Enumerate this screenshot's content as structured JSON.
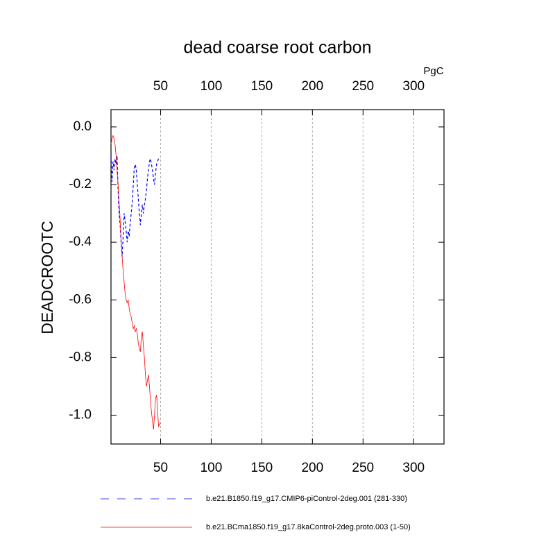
{
  "chart_data": {
    "type": "line",
    "title": "dead coarse root carbon",
    "ylabel": "DEADCROOTC",
    "top_axis_unit": "PgC",
    "top_axis_color": "#0000ff",
    "bottom_axis_color": "#ff0000",
    "xlim": [
      1,
      330
    ],
    "ylim": [
      -1.1,
      0.06
    ],
    "xticks": [
      50,
      100,
      150,
      200,
      250,
      300
    ],
    "yticks": [
      {
        "value": 0,
        "label": "0.0"
      },
      -0.2,
      -0.4,
      -0.6,
      -0.8,
      {
        "value": -1,
        "label": "-1.0"
      }
    ],
    "grid": "vertical-dotted",
    "x": [
      1,
      2,
      3,
      4,
      5,
      6,
      7,
      8,
      9,
      10,
      11,
      12,
      13,
      14,
      15,
      16,
      17,
      18,
      19,
      20,
      21,
      22,
      23,
      24,
      25,
      26,
      27,
      28,
      29,
      30,
      31,
      32,
      33,
      34,
      35,
      36,
      37,
      38,
      39,
      40,
      41,
      42,
      43,
      44,
      45,
      46,
      47,
      48,
      49,
      50
    ],
    "series": [
      {
        "name": "b.e21.B1850.f19_g17.CMIP6-piControl-2deg.001 (281-330)",
        "color": "#0000ff",
        "dash": "dashed",
        "values": [
          -0.1,
          -0.19,
          -0.12,
          -0.15,
          -0.11,
          -0.13,
          -0.1,
          -0.22,
          -0.3,
          -0.34,
          -0.4,
          -0.45,
          -0.38,
          -0.3,
          -0.33,
          -0.36,
          -0.4,
          -0.36,
          -0.38,
          -0.33,
          -0.3,
          -0.26,
          -0.2,
          -0.14,
          -0.13,
          -0.15,
          -0.2,
          -0.25,
          -0.3,
          -0.34,
          -0.3,
          -0.27,
          -0.3,
          -0.27,
          -0.25,
          -0.22,
          -0.18,
          -0.15,
          -0.12,
          -0.11,
          -0.13,
          -0.15,
          -0.18,
          -0.2,
          -0.16,
          -0.13,
          -0.12,
          -0.11,
          -0.11,
          -0.11
        ]
      },
      {
        "name": "b.e21.BCma1850.f19_g17.8kaControl-2deg.proto.003 (1-50)",
        "color": "#ff0000",
        "dash": "solid",
        "values": [
          -0.06,
          -0.04,
          -0.03,
          -0.04,
          -0.06,
          -0.1,
          -0.15,
          -0.2,
          -0.26,
          -0.32,
          -0.39,
          -0.45,
          -0.5,
          -0.54,
          -0.58,
          -0.6,
          -0.61,
          -0.6,
          -0.63,
          -0.65,
          -0.66,
          -0.68,
          -0.7,
          -0.69,
          -0.71,
          -0.7,
          -0.72,
          -0.75,
          -0.77,
          -0.78,
          -0.73,
          -0.71,
          -0.76,
          -0.8,
          -0.86,
          -0.9,
          -0.88,
          -0.86,
          -0.9,
          -0.95,
          -0.99,
          -1.02,
          -1.05,
          -1.0,
          -0.94,
          -0.93,
          -0.98,
          -1.04,
          -1.03,
          -1.03
        ]
      }
    ]
  }
}
